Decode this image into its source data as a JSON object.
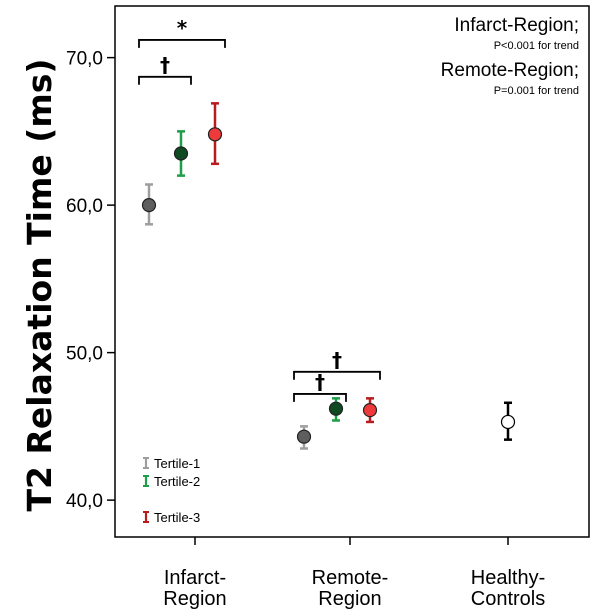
{
  "chart_data": {
    "type": "scatter",
    "ylabel": "T2 Relaxation Time (ms)",
    "ylim": [
      37.5,
      73.5
    ],
    "yticks": [
      40,
      50,
      60,
      70
    ],
    "ytick_labels": [
      "40,0",
      "50,0",
      "60,0",
      "70,0"
    ],
    "categories": [
      {
        "line1": "Infarct-",
        "line2": "Region"
      },
      {
        "line1": "Remote-",
        "line2": "Region"
      },
      {
        "line1": "Healthy-",
        "line2": "Controls"
      }
    ],
    "series": [
      {
        "name": "Tertile-1",
        "color": "#9e9e9e",
        "marker_color": "#5e5e5e",
        "filled": true,
        "points": [
          {
            "category": 0,
            "mean": 60.0,
            "low": 58.7,
            "high": 61.4
          },
          {
            "category": 1,
            "mean": 44.3,
            "low": 43.5,
            "high": 45.0
          }
        ]
      },
      {
        "name": "Tertile-2",
        "color": "#1e9e48",
        "marker_color": "#0f4a22",
        "filled": true,
        "points": [
          {
            "category": 0,
            "mean": 63.5,
            "low": 62.0,
            "high": 65.0
          },
          {
            "category": 1,
            "mean": 46.2,
            "low": 45.4,
            "high": 46.9
          }
        ]
      },
      {
        "name": "Tertile-3",
        "color": "#b81c1c",
        "marker_color": "#ee3a3a",
        "filled": true,
        "points": [
          {
            "category": 0,
            "mean": 64.8,
            "low": 62.8,
            "high": 66.9
          },
          {
            "category": 1,
            "mean": 46.1,
            "low": 45.3,
            "high": 46.9
          }
        ]
      },
      {
        "name": "",
        "color": "#000000",
        "marker_color": "#ffffff",
        "filled": false,
        "points": [
          {
            "category": 2,
            "mean": 45.3,
            "low": 44.1,
            "high": 46.6
          }
        ]
      }
    ],
    "annotations": {
      "infarct_title": "Infarct-Region;",
      "infarct_trend": "P<0.001 for trend",
      "remote_title": "Remote-Region;",
      "remote_trend": "P=0.001 for trend"
    },
    "significance": [
      {
        "category": 0,
        "from_series": 0,
        "to_series": 2,
        "level": 71.2,
        "symbol": "*"
      },
      {
        "category": 0,
        "from_series": 0,
        "to_series": 1,
        "level": 68.7,
        "symbol": "†"
      },
      {
        "category": 1,
        "from_series": 0,
        "to_series": 2,
        "level": 48.7,
        "symbol": "†"
      },
      {
        "category": 1,
        "from_series": 0,
        "to_series": 1,
        "level": 47.2,
        "symbol": "†"
      }
    ],
    "legend_placement": "bottom-left",
    "grid": false
  }
}
